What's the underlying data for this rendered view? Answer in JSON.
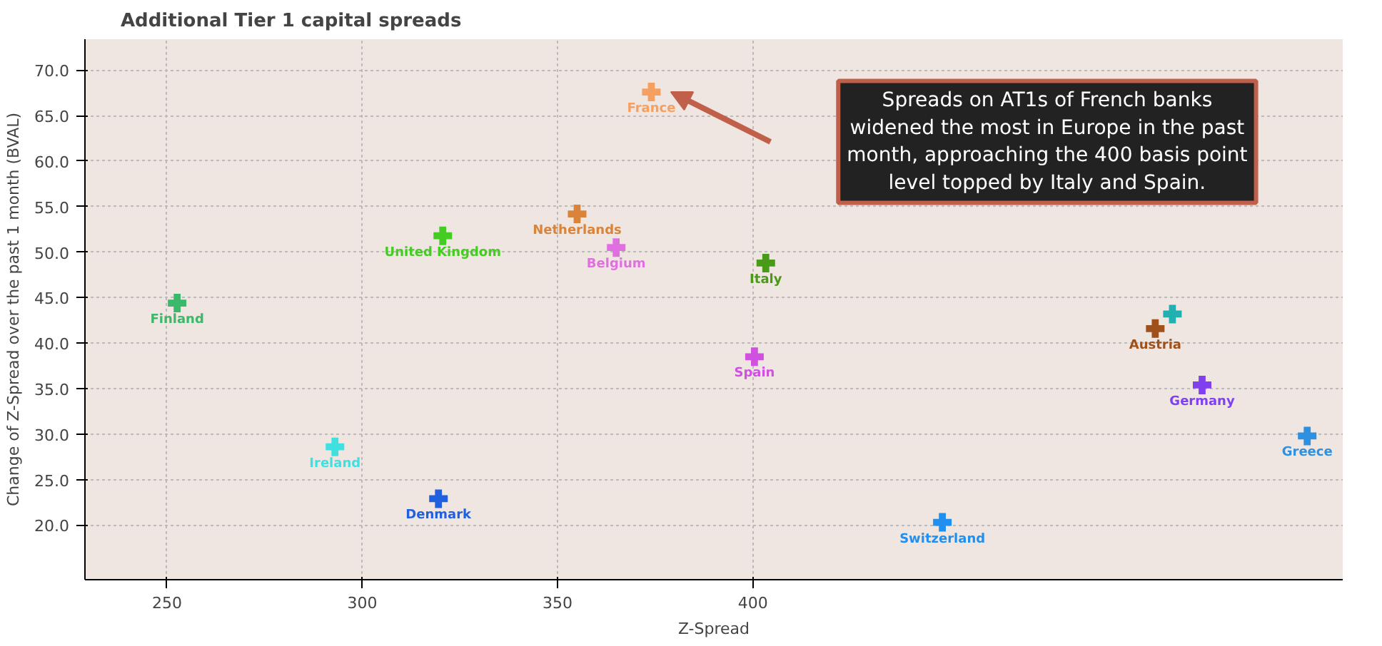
{
  "chart_data": {
    "type": "scatter",
    "title": "Additional Tier 1 capital spreads",
    "xlabel": "Z-Spread",
    "ylabel": "Change of Z-Spread over the past 1 month (BVAL)",
    "xlim": [
      229,
      551
    ],
    "ylim": [
      14,
      73.4
    ],
    "xticks": [
      250,
      300,
      350,
      400
    ],
    "yticks": [
      {
        "value": 20,
        "label": "20.0"
      },
      {
        "value": 25,
        "label": "25.0"
      },
      {
        "value": 30,
        "label": "30.0"
      },
      {
        "value": 35,
        "label": "35.0"
      },
      {
        "value": 40,
        "label": "40.0"
      },
      {
        "value": 45,
        "label": "45.0"
      },
      {
        "value": 50,
        "label": "50.0"
      },
      {
        "value": 55,
        "label": "55.0"
      },
      {
        "value": 60,
        "label": "60.0"
      },
      {
        "value": 65,
        "label": "65.0"
      },
      {
        "value": 70,
        "label": "70.0"
      }
    ],
    "grid": true,
    "marker": "cross",
    "series": [
      {
        "name": "Finland",
        "color": "#3cb86a",
        "x": [
          252.6
        ],
        "values": [
          44.4
        ]
      },
      {
        "name": "United Kingdom",
        "color": "#44cc22",
        "x": [
          320.6
        ],
        "values": [
          51.8
        ]
      },
      {
        "name": "Ireland",
        "color": "#40e0e0",
        "x": [
          293
        ],
        "values": [
          28.6
        ]
      },
      {
        "name": "Denmark",
        "color": "#1f5fe0",
        "x": [
          319.5
        ],
        "values": [
          22.9
        ]
      },
      {
        "name": "France",
        "color": "#f5a060",
        "x": [
          374
        ],
        "values": [
          67.6
        ]
      },
      {
        "name": "Netherlands",
        "color": "#d9843a",
        "x": [
          355
        ],
        "values": [
          54.2
        ]
      },
      {
        "name": "Belgium",
        "color": "#e070e0",
        "x": [
          365
        ],
        "values": [
          50.5
        ]
      },
      {
        "name": "Italy",
        "color": "#4a9a1a",
        "x": [
          403.3
        ],
        "values": [
          48.8
        ]
      },
      {
        "name": "Spain",
        "color": "#d050e0",
        "x": [
          400.4
        ],
        "values": [
          38.5
        ]
      },
      {
        "name": "Switzerland",
        "color": "#2090f0",
        "x": [
          448.5
        ],
        "values": [
          20.3
        ]
      },
      {
        "name": "Austria",
        "color": "#a0501a",
        "x": [
          503
        ],
        "values": [
          41.6
        ]
      },
      {
        "color": "#20b0b0",
        "x": [
          507.4
        ],
        "values": [
          43.2
        ]
      },
      {
        "name": "Germany",
        "color": "#8040f0",
        "x": [
          515
        ],
        "values": [
          35.4
        ]
      },
      {
        "name": "Greece",
        "color": "#3090e0",
        "x": [
          541.9
        ],
        "values": [
          29.8
        ]
      }
    ],
    "annotations": [
      "Spreads on AT1s of French banks\nwidened the most in Europe in the past\nmonth, approaching the 400 basis point\nlevel topped by Italy and Spain."
    ]
  }
}
